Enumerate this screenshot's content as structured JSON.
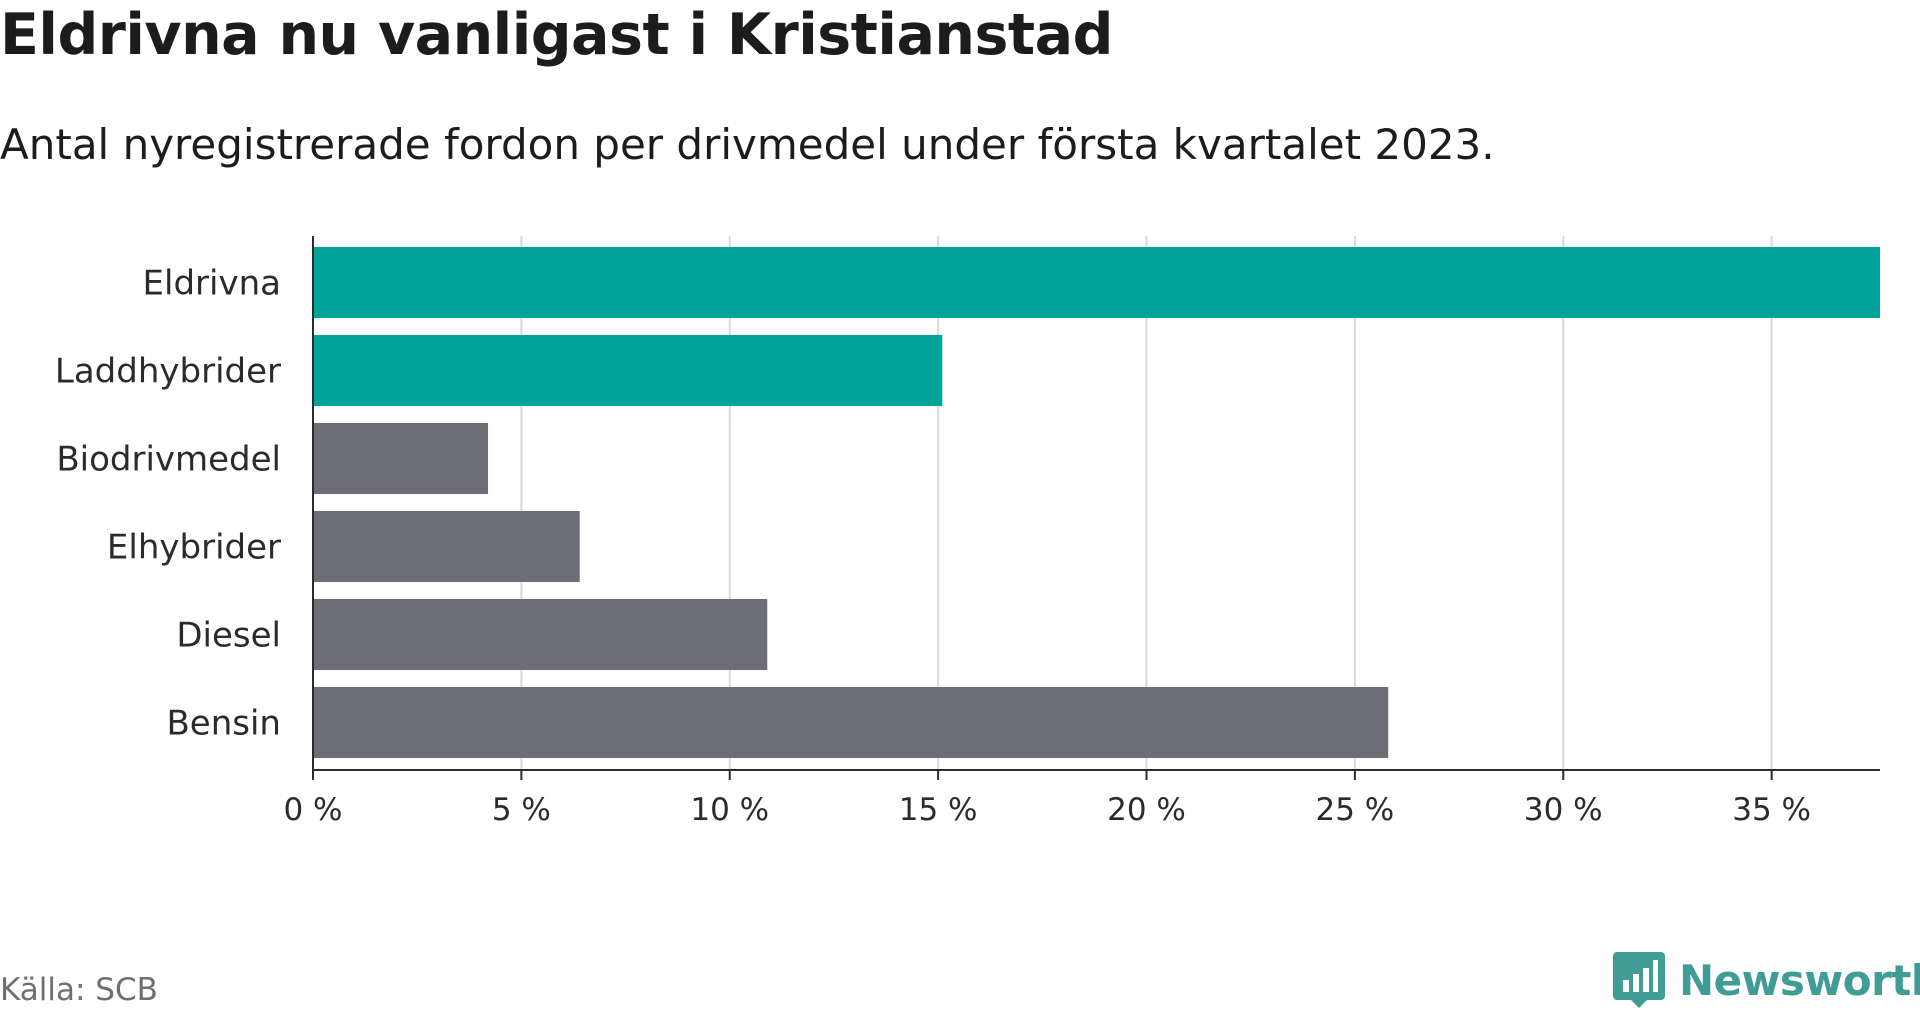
{
  "header": {
    "title": "Eldrivna nu vanligast i Kristianstad",
    "subtitle": "Antal nyregistrerade fordon per drivmedel under första kvartalet 2023."
  },
  "footer": {
    "source": "Källa: SCB",
    "brand": "Newsworthy"
  },
  "colors": {
    "highlight": "#00a49a",
    "default": "#6d6d75",
    "grid": "#d9d9d9",
    "axis": "#2b2b2b",
    "brand": "#3f9d95"
  },
  "chart_data": {
    "type": "bar",
    "orientation": "horizontal",
    "categories": [
      "Eldrivna",
      "Laddhybrider",
      "Biodrivmedel",
      "Elhybrider",
      "Diesel",
      "Bensin"
    ],
    "values": [
      37.6,
      15.1,
      4.2,
      6.4,
      10.9,
      25.8
    ],
    "highlighted": [
      true,
      true,
      false,
      false,
      false,
      false
    ],
    "unit": "%",
    "xlim": [
      0,
      37.6
    ],
    "xticks": [
      0,
      5,
      10,
      15,
      20,
      25,
      30,
      35
    ],
    "xtick_labels": [
      "0 %",
      "5 %",
      "10 %",
      "15 %",
      "20 %",
      "25 %",
      "30 %",
      "35 %"
    ],
    "grid": true,
    "legend": false
  }
}
